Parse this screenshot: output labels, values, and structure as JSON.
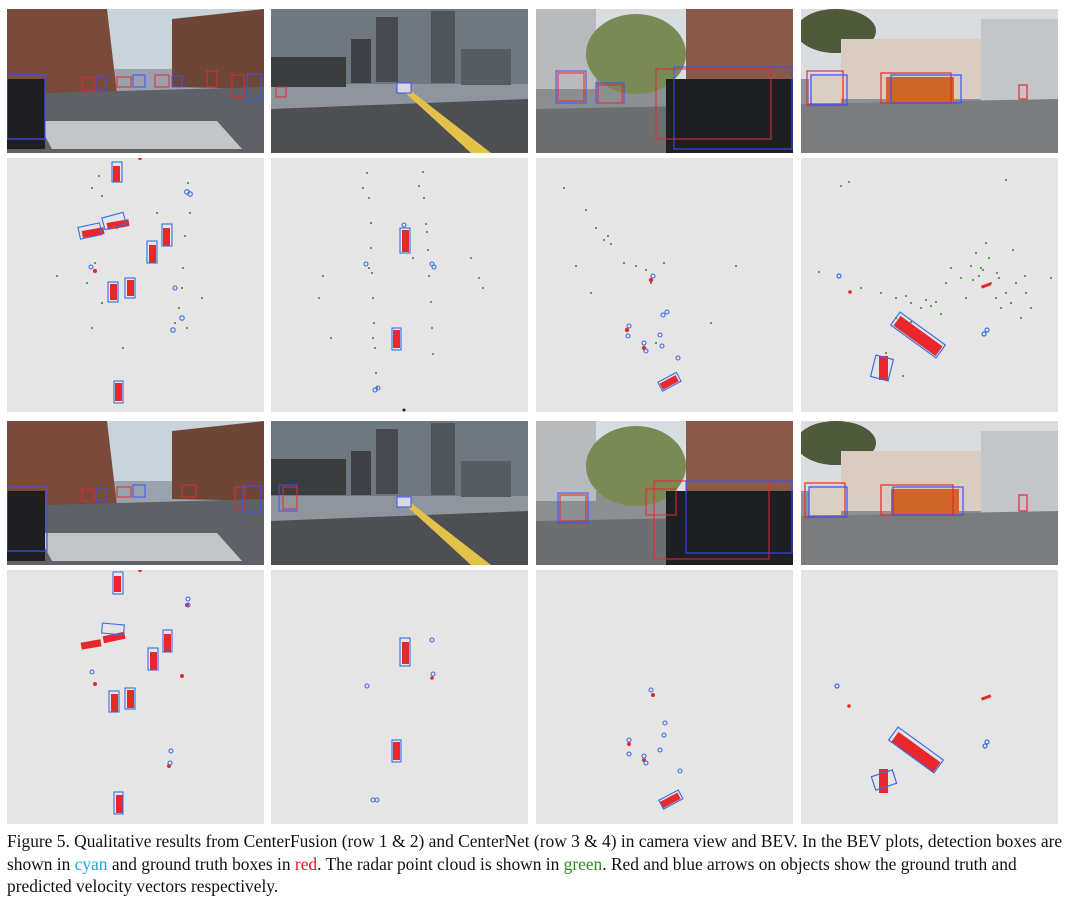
{
  "figure": {
    "caption_pre": "Figure 5. Qualitative results from CenterFusion (row 1 & 2) and CenterNet (row 3 & 4) in camera view and BEV. In the BEV plots, detection boxes are shown in ",
    "cyan_word": "cyan",
    "caption_mid1": " and ground truth boxes in ",
    "red_word": "red",
    "caption_mid2": ". The radar point cloud is shown in ",
    "green_word": "green",
    "caption_post": ". Red and blue arrows on objects show the ground truth and predicted velocity vectors respectively."
  },
  "colors": {
    "bev_background": "#e5e5e5",
    "detection": "#3a6ee8",
    "ground_truth": "#e8282c",
    "radar": "#2e8b23",
    "caption_cyan": "#18a8e6",
    "caption_red": "#e8141c",
    "caption_green": "#2a8a1e"
  },
  "panels": [
    {
      "row": 1,
      "col": 1,
      "kind": "camera"
    },
    {
      "row": 1,
      "col": 2,
      "kind": "camera"
    },
    {
      "row": 1,
      "col": 3,
      "kind": "camera"
    },
    {
      "row": 1,
      "col": 4,
      "kind": "camera"
    },
    {
      "row": 2,
      "col": 1,
      "kind": "bev",
      "radar": true
    },
    {
      "row": 2,
      "col": 2,
      "kind": "bev",
      "radar": true
    },
    {
      "row": 2,
      "col": 3,
      "kind": "bev",
      "radar": true
    },
    {
      "row": 2,
      "col": 4,
      "kind": "bev",
      "radar": true
    },
    {
      "row": 3,
      "col": 1,
      "kind": "camera"
    },
    {
      "row": 3,
      "col": 2,
      "kind": "camera"
    },
    {
      "row": 3,
      "col": 3,
      "kind": "camera"
    },
    {
      "row": 3,
      "col": 4,
      "kind": "camera"
    },
    {
      "row": 4,
      "col": 1,
      "kind": "bev",
      "radar": false
    },
    {
      "row": 4,
      "col": 2,
      "kind": "bev",
      "radar": false
    },
    {
      "row": 4,
      "col": 3,
      "kind": "bev",
      "radar": false
    },
    {
      "row": 4,
      "col": 4,
      "kind": "bev",
      "radar": false
    }
  ]
}
